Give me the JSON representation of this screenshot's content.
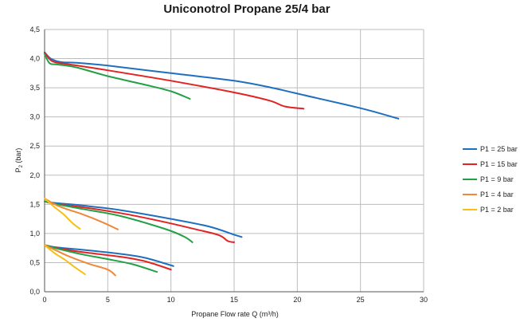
{
  "chart_data": {
    "type": "line",
    "title": "Uniconotrol Propane 25/4 bar",
    "xlabel": "Propane Flow rate Q (m³/h)",
    "ylabel_main": "P",
    "ylabel_sub": "2",
    "ylabel_unit": " (bar)",
    "xlim": [
      0,
      30
    ],
    "ylim": [
      0,
      4.5
    ],
    "xticks": [
      0,
      5,
      10,
      15,
      20,
      25,
      30
    ],
    "xtick_labels": [
      "0",
      "5",
      "10",
      "15",
      "20",
      "25",
      "30"
    ],
    "yticks": [
      0,
      0.5,
      1.0,
      1.5,
      2.0,
      2.5,
      3.0,
      3.5,
      4.0,
      4.5
    ],
    "ytick_labels": [
      "0,0",
      "0,5",
      "1,0",
      "1,5",
      "2,0",
      "2,5",
      "3,0",
      "3,5",
      "4,0",
      "4,5"
    ],
    "grid": true,
    "legend_position": "right",
    "series": [
      {
        "name": "P1 = 25 bar",
        "color": "#1f6fbf",
        "curves": [
          [
            [
              0,
              4.11
            ],
            [
              0.5,
              4.0
            ],
            [
              1.3,
              3.94
            ],
            [
              2.5,
              3.93
            ],
            [
              5,
              3.88
            ],
            [
              10,
              3.75
            ],
            [
              15,
              3.62
            ],
            [
              18,
              3.5
            ],
            [
              20,
              3.4
            ],
            [
              25,
              3.15
            ],
            [
              28,
              2.97
            ]
          ],
          [
            [
              0,
              1.55
            ],
            [
              1,
              1.52
            ],
            [
              3,
              1.48
            ],
            [
              6,
              1.4
            ],
            [
              10,
              1.25
            ],
            [
              13,
              1.12
            ],
            [
              15,
              0.98
            ],
            [
              15.6,
              0.94
            ]
          ],
          [
            [
              0,
              0.8
            ],
            [
              1,
              0.76
            ],
            [
              3,
              0.72
            ],
            [
              6,
              0.65
            ],
            [
              8,
              0.58
            ],
            [
              10.2,
              0.44
            ]
          ]
        ]
      },
      {
        "name": "P1 = 15 bar",
        "color": "#e32222",
        "curves": [
          [
            [
              0,
              4.1
            ],
            [
              0.5,
              3.97
            ],
            [
              1,
              3.93
            ],
            [
              2,
              3.9
            ],
            [
              5,
              3.8
            ],
            [
              10,
              3.62
            ],
            [
              15,
              3.42
            ],
            [
              17.8,
              3.28
            ],
            [
              19,
              3.18
            ],
            [
              20.5,
              3.14
            ]
          ],
          [
            [
              0,
              1.55
            ],
            [
              1,
              1.5
            ],
            [
              3,
              1.45
            ],
            [
              6,
              1.35
            ],
            [
              9,
              1.22
            ],
            [
              12,
              1.07
            ],
            [
              13.8,
              0.97
            ],
            [
              14.5,
              0.87
            ],
            [
              15,
              0.85
            ]
          ],
          [
            [
              0,
              0.8
            ],
            [
              1,
              0.75
            ],
            [
              3,
              0.68
            ],
            [
              6,
              0.6
            ],
            [
              8,
              0.52
            ],
            [
              10,
              0.38
            ]
          ]
        ]
      },
      {
        "name": "P1 = 9 bar",
        "color": "#21a045",
        "curves": [
          [
            [
              0,
              4.08
            ],
            [
              0.4,
              3.92
            ],
            [
              1,
              3.9
            ],
            [
              2.5,
              3.85
            ],
            [
              5,
              3.7
            ],
            [
              8,
              3.55
            ],
            [
              10,
              3.44
            ],
            [
              11.5,
              3.31
            ]
          ],
          [
            [
              0,
              1.55
            ],
            [
              1,
              1.5
            ],
            [
              3,
              1.42
            ],
            [
              6,
              1.3
            ],
            [
              9.5,
              1.08
            ],
            [
              11,
              0.95
            ],
            [
              11.7,
              0.85
            ]
          ],
          [
            [
              0,
              0.8
            ],
            [
              1,
              0.74
            ],
            [
              3,
              0.64
            ],
            [
              5,
              0.56
            ],
            [
              7,
              0.47
            ],
            [
              8.9,
              0.34
            ]
          ]
        ]
      },
      {
        "name": "P1 = 4 bar",
        "color": "#f0883a",
        "curves": [
          [
            [
              0,
              1.6
            ],
            [
              1,
              1.48
            ],
            [
              2,
              1.4
            ],
            [
              3,
              1.33
            ],
            [
              4.5,
              1.2
            ],
            [
              5.8,
              1.07
            ]
          ],
          [
            [
              0,
              0.8
            ],
            [
              1,
              0.7
            ],
            [
              2,
              0.6
            ],
            [
              3.5,
              0.48
            ],
            [
              5,
              0.38
            ],
            [
              5.6,
              0.28
            ]
          ]
        ]
      },
      {
        "name": "P1 = 2 bar",
        "color": "#f5c015",
        "curves": [
          [
            [
              0,
              1.6
            ],
            [
              0.8,
              1.45
            ],
            [
              1.5,
              1.33
            ],
            [
              2.2,
              1.18
            ],
            [
              2.8,
              1.08
            ]
          ],
          [
            [
              0,
              0.8
            ],
            [
              0.8,
              0.66
            ],
            [
              1.6,
              0.55
            ],
            [
              2.4,
              0.42
            ],
            [
              3.2,
              0.3
            ]
          ]
        ]
      }
    ]
  }
}
